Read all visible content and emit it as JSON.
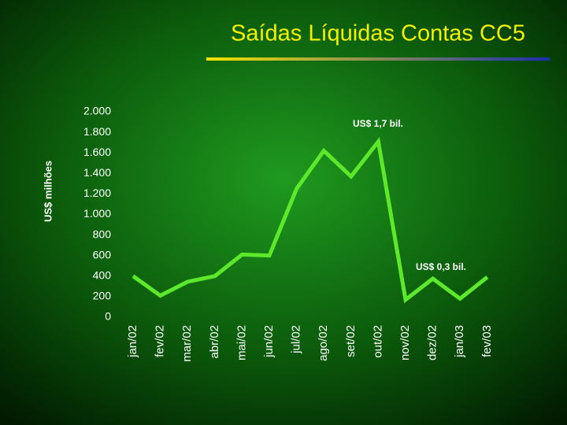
{
  "chart_data": {
    "type": "line",
    "title": "Saídas Líquidas Contas CC5",
    "ylabel": "US$ milhões",
    "categories": [
      "jan/02",
      "fev/02",
      "mar/02",
      "abr/02",
      "mai/02",
      "jun/02",
      "jul/02",
      "ago/02",
      "set/02",
      "out/02",
      "nov/02",
      "dez/02",
      "jan/03",
      "fev/03"
    ],
    "series": [
      {
        "color": "#5de82c",
        "values": [
          400,
          210,
          345,
          400,
          610,
          600,
          1250,
          1620,
          1370,
          1710,
          170,
          375,
          180,
          390
        ]
      }
    ],
    "ylim": [
      0,
      2000
    ],
    "yticks": [
      0,
      200,
      400,
      600,
      800,
      {
        "value": 1000,
        "label": "1.000"
      },
      {
        "value": 1200,
        "label": "1.200"
      },
      {
        "value": 1400,
        "label": "1.400"
      },
      {
        "value": 1600,
        "label": "1.600"
      },
      {
        "value": 1800,
        "label": "1.800"
      },
      {
        "value": 2000,
        "label": "2.000"
      }
    ],
    "annotations": [
      "US$ 1,7 bil.",
      "US$ 0,3 bil."
    ],
    "grid": false
  }
}
